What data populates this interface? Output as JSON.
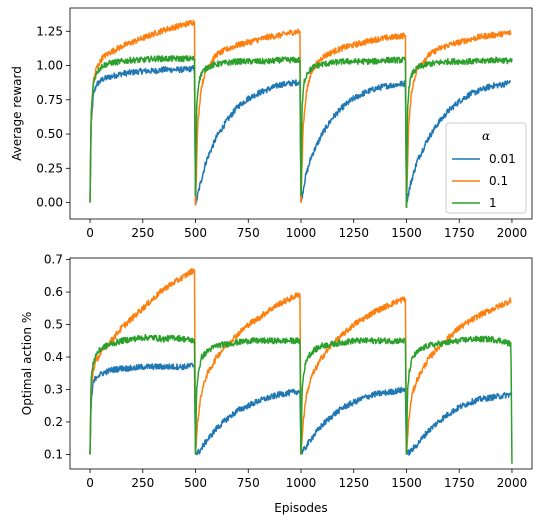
{
  "chart_data": [
    {
      "type": "line",
      "ylabel": "Average reward",
      "xlabel": "",
      "xlim": [
        -95,
        2095
      ],
      "ylim": [
        -0.12,
        1.42
      ],
      "xticks": [
        0,
        250,
        500,
        750,
        1000,
        1250,
        1500,
        1750,
        2000
      ],
      "xtick_labels": [
        "0",
        "250",
        "500",
        "750",
        "1000",
        "1250",
        "1500",
        "1750",
        "2000"
      ],
      "yticks": [
        0.0,
        0.25,
        0.5,
        0.75,
        1.0,
        1.25
      ],
      "ytick_labels": [
        "0.00",
        "0.25",
        "0.50",
        "0.75",
        "1.00",
        "1.25"
      ],
      "legend": {
        "title": "α",
        "position": "center-right"
      },
      "grid": false,
      "series": [
        {
          "name": "0.01",
          "color": "#1f77b4",
          "segments": [
            {
              "x": [
                0,
                5,
                15,
                30,
                60,
                100,
                150,
                200,
                250,
                300,
                350,
                400,
                450,
                495
              ],
              "y": [
                0.0,
                0.55,
                0.78,
                0.86,
                0.9,
                0.92,
                0.94,
                0.95,
                0.96,
                0.96,
                0.97,
                0.97,
                0.97,
                0.98
              ]
            },
            {
              "x": [
                500,
                520,
                550,
                600,
                650,
                700,
                750,
                800,
                850,
                900,
                950,
                995
              ],
              "y": [
                -0.02,
                0.12,
                0.3,
                0.48,
                0.6,
                0.7,
                0.76,
                0.8,
                0.83,
                0.86,
                0.87,
                0.88
              ]
            },
            {
              "x": [
                1000,
                1020,
                1050,
                1100,
                1150,
                1200,
                1250,
                1300,
                1350,
                1400,
                1450,
                1495
              ],
              "y": [
                0.0,
                0.18,
                0.34,
                0.5,
                0.62,
                0.7,
                0.76,
                0.8,
                0.83,
                0.85,
                0.86,
                0.87
              ]
            },
            {
              "x": [
                1500,
                1520,
                1550,
                1600,
                1650,
                1700,
                1750,
                1800,
                1850,
                1900,
                1950,
                1995
              ],
              "y": [
                0.0,
                0.14,
                0.3,
                0.46,
                0.58,
                0.67,
                0.74,
                0.79,
                0.82,
                0.85,
                0.86,
                0.88
              ]
            }
          ]
        },
        {
          "name": "0.1",
          "color": "#ff7f0e",
          "segments": [
            {
              "x": [
                0,
                5,
                15,
                30,
                60,
                100,
                150,
                200,
                250,
                300,
                350,
                400,
                450,
                495
              ],
              "y": [
                0.0,
                0.6,
                0.88,
                0.98,
                1.06,
                1.1,
                1.14,
                1.17,
                1.2,
                1.23,
                1.26,
                1.28,
                1.3,
                1.32
              ]
            },
            {
              "x": [
                500,
                510,
                525,
                550,
                600,
                650,
                700,
                750,
                800,
                850,
                900,
                950,
                995
              ],
              "y": [
                -0.02,
                0.55,
                0.82,
                0.98,
                1.08,
                1.12,
                1.15,
                1.17,
                1.19,
                1.21,
                1.22,
                1.24,
                1.25
              ]
            },
            {
              "x": [
                1000,
                1010,
                1025,
                1050,
                1100,
                1150,
                1200,
                1250,
                1300,
                1350,
                1400,
                1450,
                1495
              ],
              "y": [
                0.0,
                0.55,
                0.8,
                0.96,
                1.06,
                1.1,
                1.13,
                1.15,
                1.17,
                1.19,
                1.2,
                1.21,
                1.22
              ]
            },
            {
              "x": [
                1500,
                1510,
                1525,
                1550,
                1600,
                1650,
                1700,
                1750,
                1800,
                1850,
                1900,
                1950,
                1995
              ],
              "y": [
                -0.02,
                0.55,
                0.82,
                0.98,
                1.07,
                1.12,
                1.15,
                1.17,
                1.19,
                1.21,
                1.22,
                1.23,
                1.24
              ]
            }
          ]
        },
        {
          "name": "1",
          "color": "#2ca02c",
          "segments": [
            {
              "x": [
                0,
                5,
                15,
                30,
                60,
                100,
                150,
                200,
                250,
                300,
                350,
                400,
                450,
                495
              ],
              "y": [
                0.0,
                0.65,
                0.86,
                0.95,
                1.0,
                1.02,
                1.03,
                1.04,
                1.04,
                1.05,
                1.05,
                1.05,
                1.05,
                1.05
              ]
            },
            {
              "x": [
                500,
                505,
                515,
                530,
                560,
                600,
                650,
                700,
                750,
                800,
                850,
                900,
                950,
                995
              ],
              "y": [
                0.05,
                0.7,
                0.88,
                0.95,
                0.99,
                1.01,
                1.02,
                1.03,
                1.03,
                1.03,
                1.03,
                1.04,
                1.04,
                1.04
              ]
            },
            {
              "x": [
                1000,
                1005,
                1015,
                1030,
                1060,
                1100,
                1150,
                1200,
                1250,
                1300,
                1350,
                1400,
                1450,
                1495
              ],
              "y": [
                0.05,
                0.7,
                0.88,
                0.95,
                0.99,
                1.01,
                1.02,
                1.03,
                1.03,
                1.03,
                1.03,
                1.04,
                1.04,
                1.04
              ]
            },
            {
              "x": [
                1500,
                1505,
                1515,
                1530,
                1560,
                1600,
                1650,
                1700,
                1750,
                1800,
                1850,
                1900,
                1950,
                2000
              ],
              "y": [
                -0.04,
                0.7,
                0.88,
                0.95,
                0.99,
                1.01,
                1.02,
                1.03,
                1.03,
                1.03,
                1.03,
                1.04,
                1.04,
                1.03
              ]
            }
          ]
        }
      ]
    },
    {
      "type": "line",
      "ylabel": "Optimal action %",
      "xlabel": "Episodes",
      "xlim": [
        -95,
        2095
      ],
      "ylim": [
        0.055,
        0.705
      ],
      "xticks": [
        0,
        250,
        500,
        750,
        1000,
        1250,
        1500,
        1750,
        2000
      ],
      "xtick_labels": [
        "0",
        "250",
        "500",
        "750",
        "1000",
        "1250",
        "1500",
        "1750",
        "2000"
      ],
      "yticks": [
        0.1,
        0.2,
        0.3,
        0.4,
        0.5,
        0.6,
        0.7
      ],
      "ytick_labels": [
        "0.1",
        "0.2",
        "0.3",
        "0.4",
        "0.5",
        "0.6",
        "0.7"
      ],
      "grid": false,
      "series": [
        {
          "name": "0.01",
          "color": "#1f77b4",
          "segments": [
            {
              "x": [
                0,
                5,
                15,
                30,
                60,
                100,
                150,
                200,
                250,
                300,
                350,
                400,
                450,
                495
              ],
              "y": [
                0.1,
                0.26,
                0.32,
                0.34,
                0.35,
                0.36,
                0.365,
                0.365,
                0.37,
                0.37,
                0.37,
                0.37,
                0.37,
                0.375
              ]
            },
            {
              "x": [
                500,
                520,
                550,
                600,
                650,
                700,
                750,
                800,
                850,
                900,
                950,
                995
              ],
              "y": [
                0.1,
                0.11,
                0.14,
                0.18,
                0.21,
                0.235,
                0.25,
                0.265,
                0.275,
                0.285,
                0.29,
                0.295
              ]
            },
            {
              "x": [
                1000,
                1020,
                1050,
                1100,
                1150,
                1200,
                1250,
                1300,
                1350,
                1400,
                1450,
                1495
              ],
              "y": [
                0.1,
                0.12,
                0.15,
                0.19,
                0.22,
                0.245,
                0.26,
                0.275,
                0.285,
                0.29,
                0.295,
                0.3
              ]
            },
            {
              "x": [
                1500,
                1520,
                1550,
                1600,
                1650,
                1700,
                1750,
                1800,
                1850,
                1900,
                1950,
                1995
              ],
              "y": [
                0.1,
                0.11,
                0.13,
                0.17,
                0.2,
                0.225,
                0.245,
                0.26,
                0.27,
                0.275,
                0.28,
                0.285
              ]
            }
          ]
        },
        {
          "name": "0.1",
          "color": "#ff7f0e",
          "segments": [
            {
              "x": [
                0,
                5,
                15,
                30,
                60,
                100,
                150,
                200,
                250,
                300,
                350,
                400,
                450,
                495
              ],
              "y": [
                0.1,
                0.3,
                0.36,
                0.39,
                0.42,
                0.45,
                0.49,
                0.52,
                0.55,
                0.58,
                0.61,
                0.63,
                0.65,
                0.67
              ]
            },
            {
              "x": [
                500,
                510,
                525,
                550,
                600,
                650,
                700,
                750,
                800,
                850,
                900,
                950,
                995
              ],
              "y": [
                0.1,
                0.2,
                0.28,
                0.34,
                0.4,
                0.44,
                0.47,
                0.5,
                0.52,
                0.545,
                0.565,
                0.58,
                0.595
              ]
            },
            {
              "x": [
                1000,
                1010,
                1025,
                1050,
                1100,
                1150,
                1200,
                1250,
                1300,
                1350,
                1400,
                1450,
                1495
              ],
              "y": [
                0.1,
                0.2,
                0.28,
                0.34,
                0.4,
                0.44,
                0.47,
                0.5,
                0.52,
                0.54,
                0.555,
                0.57,
                0.58
              ]
            },
            {
              "x": [
                1500,
                1510,
                1525,
                1550,
                1600,
                1650,
                1700,
                1750,
                1800,
                1850,
                1900,
                1950,
                1995
              ],
              "y": [
                0.1,
                0.2,
                0.28,
                0.33,
                0.39,
                0.43,
                0.46,
                0.49,
                0.51,
                0.53,
                0.545,
                0.56,
                0.575
              ]
            }
          ]
        },
        {
          "name": "1",
          "color": "#2ca02c",
          "segments": [
            {
              "x": [
                0,
                5,
                15,
                30,
                60,
                100,
                150,
                200,
                250,
                300,
                350,
                400,
                450,
                495
              ],
              "y": [
                0.1,
                0.33,
                0.38,
                0.41,
                0.43,
                0.44,
                0.45,
                0.455,
                0.46,
                0.46,
                0.455,
                0.46,
                0.455,
                0.45
              ]
            },
            {
              "x": [
                500,
                505,
                515,
                530,
                560,
                600,
                650,
                700,
                750,
                800,
                850,
                900,
                950,
                995
              ],
              "y": [
                0.1,
                0.3,
                0.36,
                0.4,
                0.42,
                0.435,
                0.44,
                0.445,
                0.45,
                0.45,
                0.45,
                0.45,
                0.45,
                0.45
              ]
            },
            {
              "x": [
                1000,
                1005,
                1015,
                1030,
                1060,
                1100,
                1150,
                1200,
                1250,
                1300,
                1350,
                1400,
                1450,
                1495
              ],
              "y": [
                0.1,
                0.3,
                0.36,
                0.4,
                0.42,
                0.435,
                0.44,
                0.445,
                0.45,
                0.45,
                0.45,
                0.45,
                0.45,
                0.45
              ]
            },
            {
              "x": [
                1500,
                1505,
                1515,
                1530,
                1560,
                1600,
                1650,
                1700,
                1750,
                1800,
                1850,
                1900,
                1950,
                1995,
                2000
              ],
              "y": [
                0.1,
                0.3,
                0.36,
                0.4,
                0.42,
                0.435,
                0.44,
                0.445,
                0.45,
                0.455,
                0.455,
                0.455,
                0.45,
                0.44,
                0.08
              ]
            }
          ]
        }
      ]
    }
  ]
}
